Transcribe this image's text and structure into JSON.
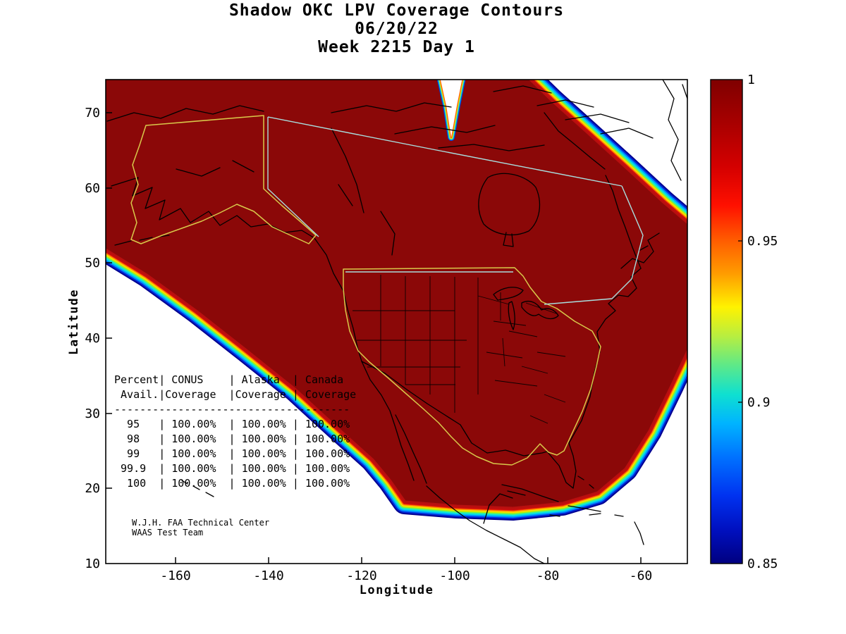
{
  "figure": {
    "title_line1": "Shadow OKC LPV Coverage Contours",
    "title_line2": "06/20/22",
    "title_line3": "Week 2215 Day 1"
  },
  "axes": {
    "xlabel": "Longitude",
    "ylabel": "Latitude",
    "x_ticks": [
      "-160",
      "-140",
      "-120",
      "-100",
      "-80",
      "-60"
    ],
    "y_ticks": [
      "70",
      "60",
      "50",
      "40",
      "30",
      "20",
      "10"
    ],
    "x_range": [
      -175,
      -50
    ],
    "y_range": [
      10,
      74.4
    ]
  },
  "colorbar": {
    "tick_labels": [
      "1",
      "0.95",
      "0.9",
      "0.85"
    ],
    "tick_values": [
      1,
      0.95,
      0.9,
      0.85
    ],
    "max": 1,
    "min": 0.85
  },
  "coverage_table": {
    "lines": [
      "Percent| CONUS    | Alaska  | Canada",
      " Avail.|Coverage  |Coverage | Coverage",
      "-------------------------------------",
      "  95   | 100.00%  | 100.00% | 100.00%",
      "  98   | 100.00%  | 100.00% | 100.00%",
      "  99   | 100.00%  | 100.00% | 100.00%",
      " 99.9  | 100.00%  | 100.00% | 100.00%",
      "  100  | 100.00%  | 100.00% | 100.00%"
    ]
  },
  "attribution": {
    "line1": "W.J.H. FAA Technical Center",
    "line2": "WAAS Test Team"
  },
  "chart_data": {
    "type": "heatmap",
    "title": "Shadow OKC LPV Coverage Contours",
    "subtitle": "06/20/22 — Week 2215 Day 1",
    "xlabel": "Longitude",
    "ylabel": "Latitude",
    "xlim": [
      -175,
      -50
    ],
    "ylim": [
      10,
      74.4
    ],
    "x_ticks": [
      -160,
      -140,
      -120,
      -100,
      -80,
      -60
    ],
    "y_ticks": [
      70,
      60,
      50,
      40,
      30,
      20,
      10
    ],
    "colorbar": {
      "min": 0.85,
      "max": 1.0,
      "ticks": [
        1,
        0.95,
        0.9,
        0.85
      ],
      "colormap": "jet",
      "position": "right"
    },
    "content": "LPV coverage probability contours over North America; interior plateau at coverage = 1.0 (dark red) spanning CONUS, Alaska and Canada service volumes (yellow outlines), with rainbow gradient fringe decreasing from 1.0 to 0.85 along the Pacific southwest, Gulf/Caribbean southeast and North Atlantic edges",
    "availability_table": {
      "columns": [
        "Percent Avail.",
        "CONUS Coverage",
        "Alaska Coverage",
        "Canada Coverage"
      ],
      "rows": [
        [
          "95",
          "100.00%",
          "100.00%",
          "100.00%"
        ],
        [
          "98",
          "100.00%",
          "100.00%",
          "100.00%"
        ],
        [
          "99",
          "100.00%",
          "100.00%",
          "100.00%"
        ],
        [
          "99.9",
          "100.00%",
          "100.00%",
          "100.00%"
        ],
        [
          "100",
          "100.00%",
          "100.00%",
          "100.00%"
        ]
      ]
    }
  },
  "colors": {
    "plateau": "#8b0808",
    "service_volume_outline": "#d8c84a",
    "service_line": "#a8dede",
    "coast": "#000000"
  }
}
